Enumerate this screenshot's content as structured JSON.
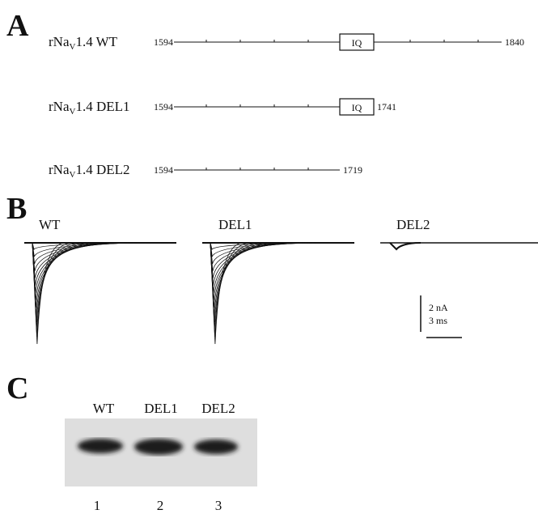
{
  "panel_a": {
    "letter": "A",
    "constructs": [
      {
        "name": {
          "prefix": "rNa",
          "sub": "V",
          "suffix": "1.4 WT"
        },
        "start": "1594",
        "end": "1840",
        "domain": "IQ"
      },
      {
        "name": {
          "prefix": "rNa",
          "sub": "V",
          "suffix": "1.4 DEL1"
        },
        "start": "1594",
        "end": "1741",
        "domain": "IQ"
      },
      {
        "name": {
          "prefix": "rNa",
          "sub": "V",
          "suffix": "1.4 DEL2"
        },
        "start": "1594",
        "end": "1719"
      }
    ]
  },
  "panel_b": {
    "letter": "B",
    "traces": [
      "WT",
      "DEL1",
      "DEL2"
    ],
    "scale_bar": {
      "current": "2 nA",
      "time": "3 ms"
    }
  },
  "panel_c": {
    "letter": "C",
    "lanes": [
      "WT",
      "DEL1",
      "DEL2"
    ],
    "lane_numbers": [
      "1",
      "2",
      "3"
    ]
  }
}
